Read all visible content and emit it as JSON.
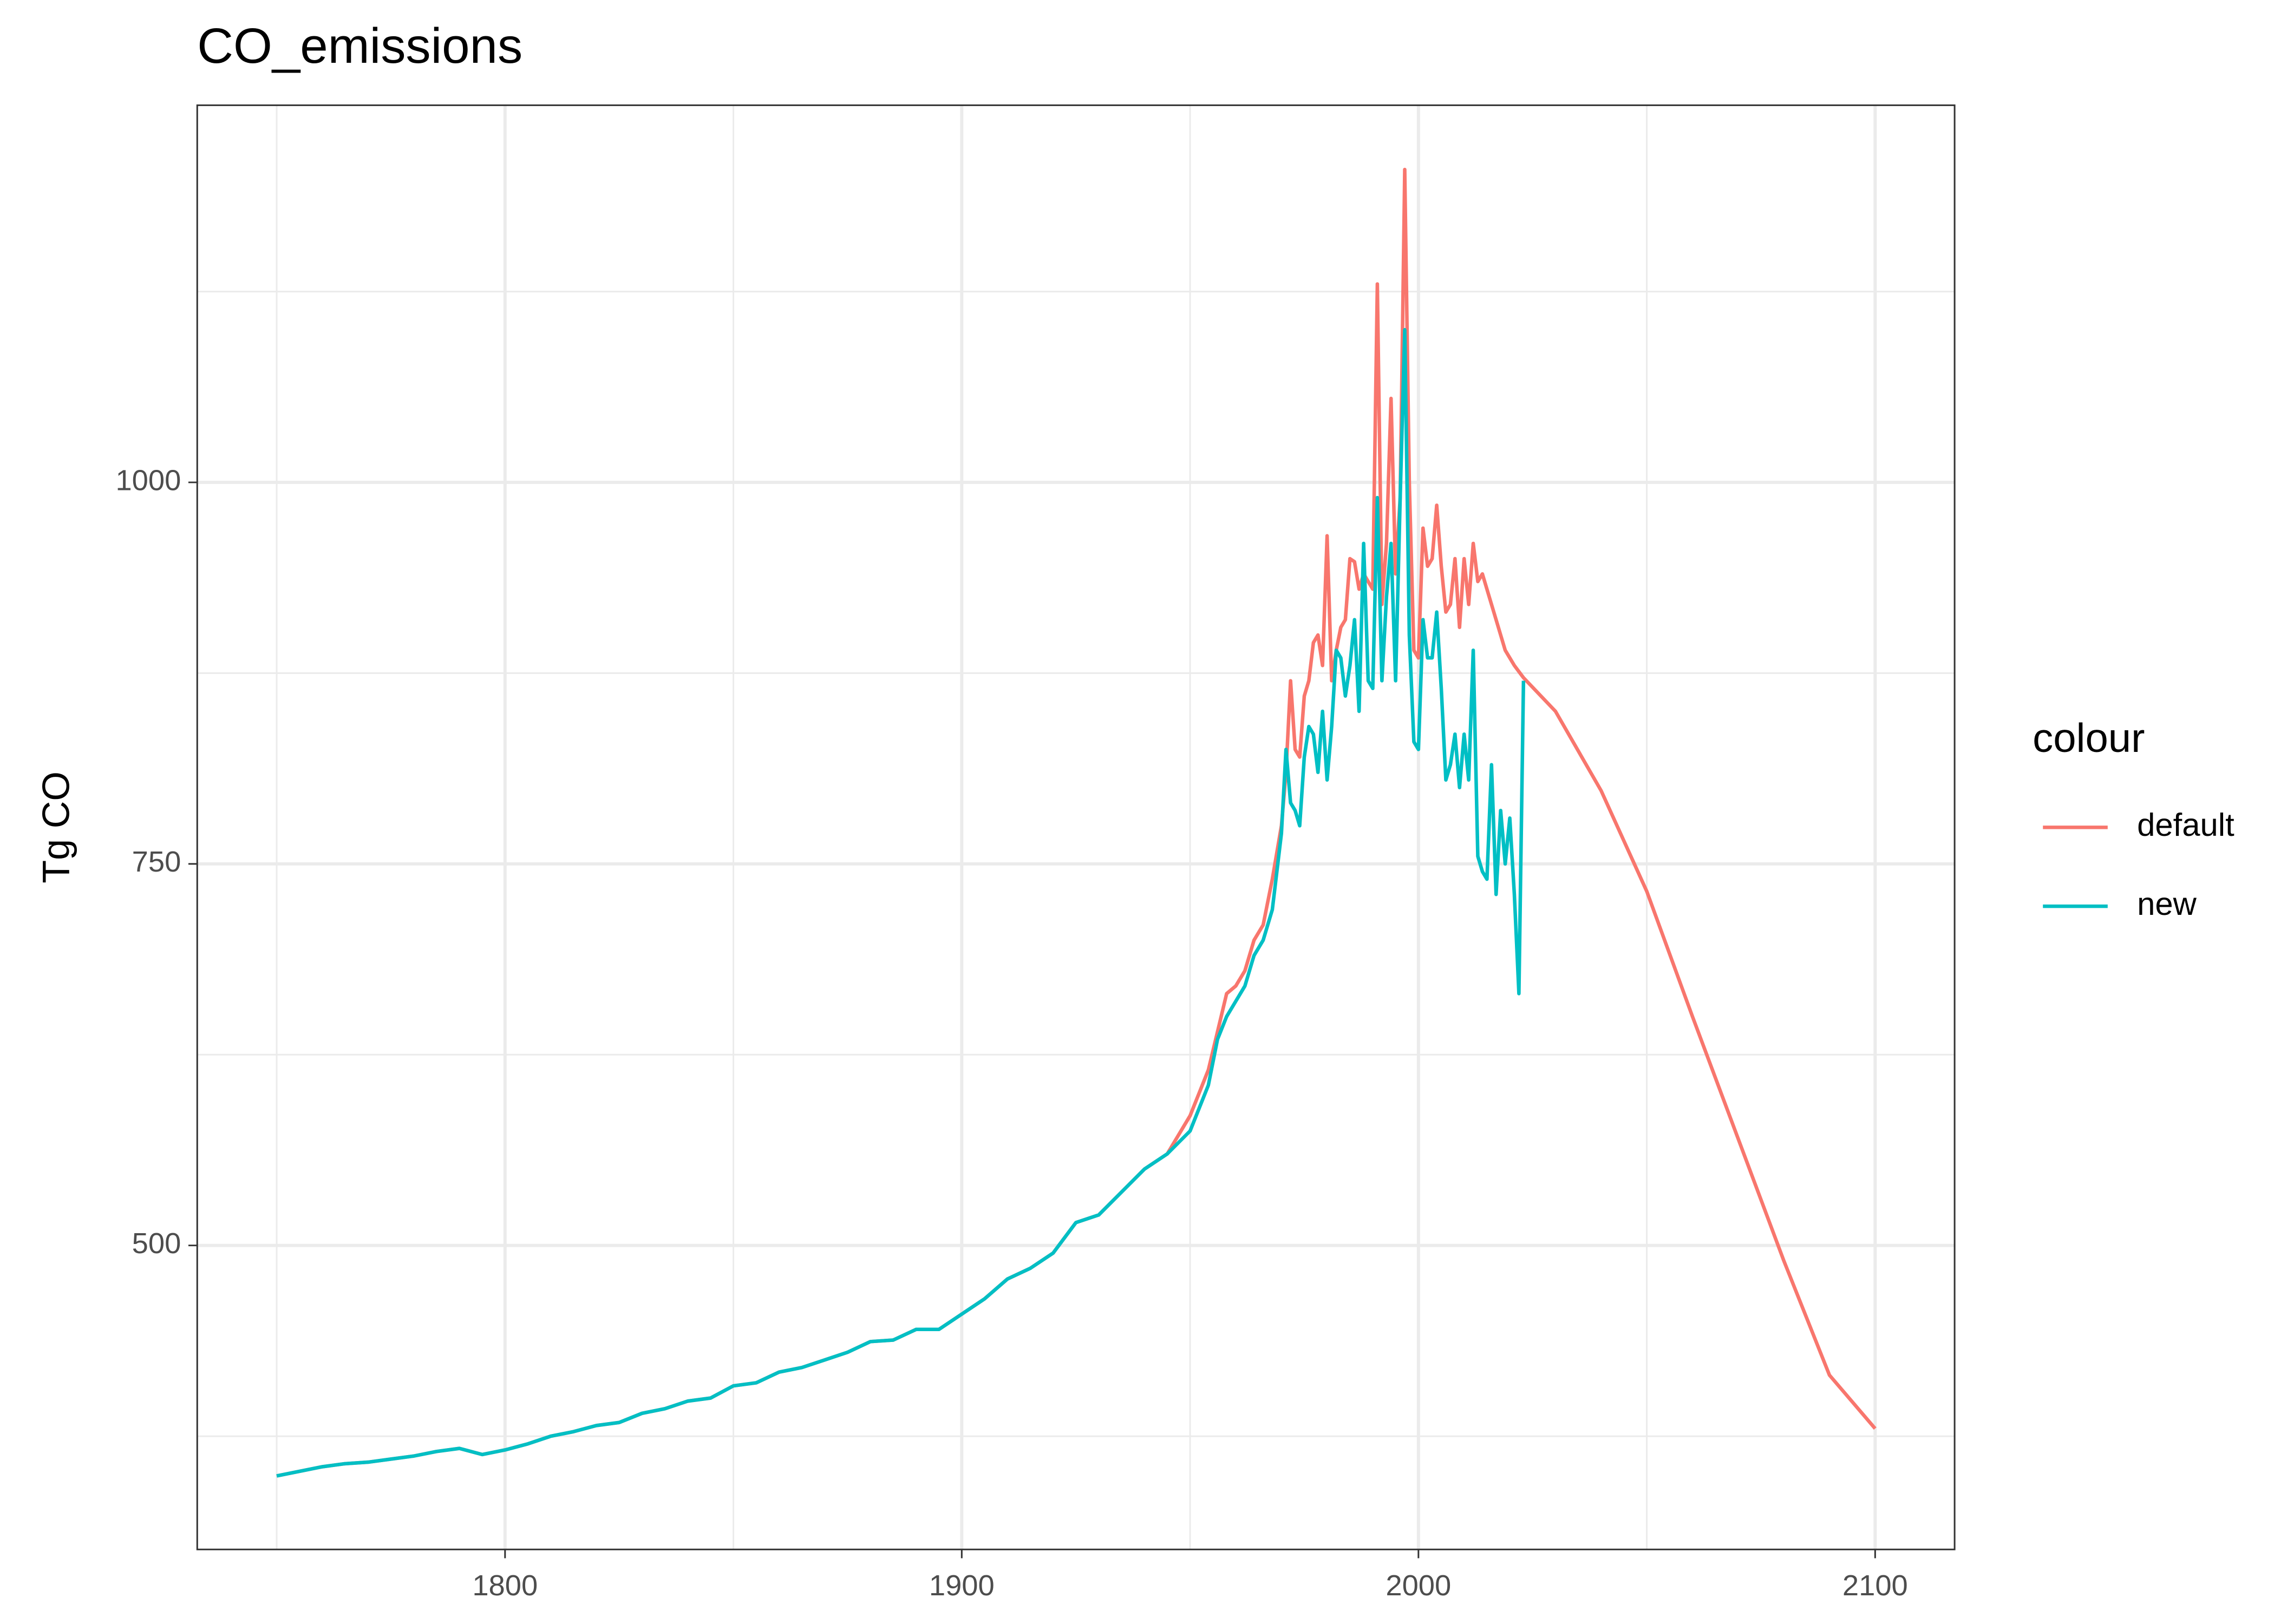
{
  "chart_data": {
    "type": "line",
    "title": "CO_emissions",
    "y_label": "Tg CO",
    "legend_title": "colour",
    "legend_position": "right",
    "grid": true,
    "x": [
      1750,
      1755,
      1760,
      1765,
      1770,
      1775,
      1780,
      1785,
      1790,
      1795,
      1800,
      1805,
      1810,
      1815,
      1820,
      1825,
      1830,
      1835,
      1840,
      1845,
      1850,
      1855,
      1860,
      1865,
      1870,
      1875,
      1880,
      1885,
      1890,
      1895,
      1900,
      1905,
      1910,
      1915,
      1920,
      1925,
      1930,
      1935,
      1940,
      1945,
      1950,
      1952,
      1954,
      1956,
      1958,
      1960,
      1962,
      1964,
      1966,
      1968,
      1970,
      1971,
      1972,
      1973,
      1974,
      1975,
      1976,
      1977,
      1978,
      1979,
      1980,
      1981,
      1982,
      1983,
      1984,
      1985,
      1986,
      1987,
      1988,
      1989,
      1990,
      1991,
      1992,
      1993,
      1994,
      1995,
      1996,
      1997,
      1998,
      1999,
      2000,
      2001,
      2002,
      2003,
      2004,
      2005,
      2006,
      2007,
      2008,
      2009,
      2010,
      2011,
      2012,
      2013,
      2014,
      2015,
      2016,
      2017,
      2018,
      2019,
      2020,
      2021,
      2022,
      2023,
      2030,
      2040,
      2050,
      2060,
      2070,
      2080,
      2090,
      2100
    ],
    "series": [
      {
        "name": "default",
        "color": "#F8766D",
        "values": [
          349,
          352,
          355,
          357,
          358,
          360,
          362,
          365,
          367,
          363,
          366,
          370,
          375,
          378,
          382,
          384,
          390,
          393,
          398,
          400,
          408,
          410,
          417,
          420,
          425,
          430,
          437,
          438,
          445,
          445,
          455,
          465,
          478,
          485,
          495,
          515,
          520,
          535,
          550,
          560,
          585,
          600,
          615,
          640,
          665,
          670,
          680,
          700,
          710,
          740,
          775,
          810,
          870,
          825,
          820,
          860,
          870,
          895,
          900,
          880,
          965,
          870,
          890,
          905,
          910,
          950,
          948,
          930,
          940,
          935,
          930,
          1130,
          920,
          960,
          1055,
          940,
          990,
          1205,
          1000,
          890,
          885,
          970,
          945,
          950,
          985,
          945,
          915,
          920,
          950,
          905,
          950,
          920,
          960,
          935,
          940,
          930,
          920,
          910,
          900,
          890,
          885,
          880,
          876,
          872,
          850,
          798,
          732,
          650,
          570,
          490,
          415,
          380
        ]
      },
      {
        "name": "new",
        "color": "#00BFC4",
        "values": [
          349,
          352,
          355,
          357,
          358,
          360,
          362,
          365,
          367,
          363,
          366,
          370,
          375,
          378,
          382,
          384,
          390,
          393,
          398,
          400,
          408,
          410,
          417,
          420,
          425,
          430,
          437,
          438,
          445,
          445,
          455,
          465,
          478,
          485,
          495,
          515,
          520,
          535,
          550,
          560,
          575,
          590,
          605,
          635,
          650,
          660,
          670,
          690,
          700,
          720,
          770,
          825,
          790,
          785,
          775,
          820,
          840,
          835,
          810,
          850,
          805,
          840,
          890,
          885,
          860,
          880,
          910,
          850,
          960,
          870,
          865,
          990,
          870,
          925,
          960,
          870,
          990,
          1100,
          900,
          830,
          825,
          910,
          885,
          885,
          915,
          865,
          805,
          815,
          835,
          800,
          835,
          805,
          890,
          755,
          745,
          740,
          815,
          730,
          785,
          750,
          780,
          730,
          665,
          870,
          null,
          null,
          null,
          null,
          null,
          null,
          null,
          null
        ]
      }
    ],
    "xlim": [
      1732.6,
      2117.4
    ],
    "ylim": [
      300.8,
      1247.1
    ],
    "xticks": [
      1800,
      1900,
      2000,
      2100
    ],
    "yticks": [
      500,
      750,
      1000
    ],
    "x_minor_ticks": [
      1750,
      1850,
      1950,
      2050
    ],
    "y_minor_ticks": [
      375,
      625,
      875,
      1125
    ]
  }
}
